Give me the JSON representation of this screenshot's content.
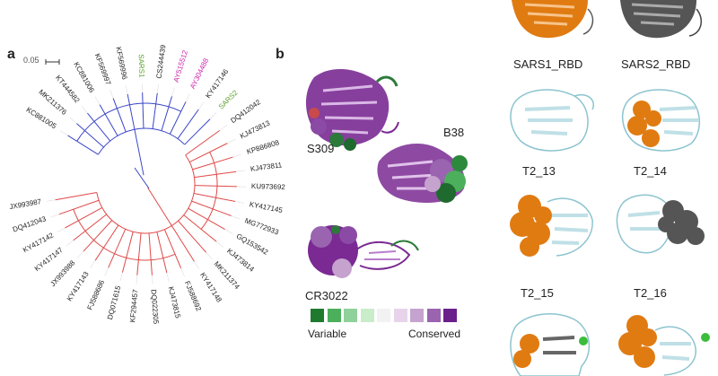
{
  "panel_a": {
    "letter": "a",
    "scale_label": "0.05",
    "leaves": [
      {
        "name": "KC881005",
        "color": "#222222"
      },
      {
        "name": "MK211376",
        "color": "#222222"
      },
      {
        "name": "KT444582",
        "color": "#222222"
      },
      {
        "name": "KC881006",
        "color": "#222222"
      },
      {
        "name": "KF569997",
        "color": "#222222"
      },
      {
        "name": "KF569996",
        "color": "#222222"
      },
      {
        "name": "SARS1",
        "color": "#5aa02c"
      },
      {
        "name": "CS244439",
        "color": "#222222"
      },
      {
        "name": "AY515512",
        "color": "#cc22aa"
      },
      {
        "name": "AY304488",
        "color": "#cc22aa"
      },
      {
        "name": "KY417146",
        "color": "#222222"
      },
      {
        "name": "SARS2",
        "color": "#5aa02c"
      },
      {
        "name": "DQ412042",
        "color": "#222222"
      },
      {
        "name": "KJ473813",
        "color": "#222222"
      },
      {
        "name": "KP886808",
        "color": "#222222"
      },
      {
        "name": "KJ473811",
        "color": "#222222"
      },
      {
        "name": "KU973692",
        "color": "#222222"
      },
      {
        "name": "KY417145",
        "color": "#222222"
      },
      {
        "name": "MG772933",
        "color": "#222222"
      },
      {
        "name": "GQ153542",
        "color": "#222222"
      },
      {
        "name": "KJ473814",
        "color": "#222222"
      },
      {
        "name": "MK211374",
        "color": "#222222"
      },
      {
        "name": "KY417148",
        "color": "#222222"
      },
      {
        "name": "FJ588692",
        "color": "#222222"
      },
      {
        "name": "KJ473815",
        "color": "#222222"
      },
      {
        "name": "DQ022305",
        "color": "#222222"
      },
      {
        "name": "KF294457",
        "color": "#222222"
      },
      {
        "name": "DQ071615",
        "color": "#222222"
      },
      {
        "name": "FJ588686",
        "color": "#222222"
      },
      {
        "name": "KY417143",
        "color": "#222222"
      },
      {
        "name": "JX993988",
        "color": "#222222"
      },
      {
        "name": "KY417147",
        "color": "#222222"
      },
      {
        "name": "KY417142",
        "color": "#222222"
      },
      {
        "name": "DQ412043",
        "color": "#222222"
      },
      {
        "name": "JX993987",
        "color": "#222222"
      }
    ],
    "colors": {
      "blue_clade": "#3a45c8",
      "red_clade": "#e04848"
    }
  },
  "panel_b": {
    "letter": "b",
    "antibodies": [
      "S309",
      "B38",
      "CR3022"
    ],
    "legend_low": "Variable",
    "legend_high": "Conserved",
    "legend_colors": [
      "#1f7a2e",
      "#4caf5c",
      "#8fd19a",
      "#c9ecc9",
      "#f2f2f2",
      "#e7d4ea",
      "#c6a2cf",
      "#9a64b0",
      "#6a1f8a"
    ]
  },
  "panel_c": {
    "labels": [
      "SARS1_RBD",
      "SARS2_RBD",
      "T2_13",
      "T2_14",
      "T2_15",
      "T2_16"
    ],
    "colors": {
      "orange": "#e07b12",
      "grey": "#555555",
      "lightblue": "#bfe0e6",
      "green": "#3bbd3b"
    }
  }
}
